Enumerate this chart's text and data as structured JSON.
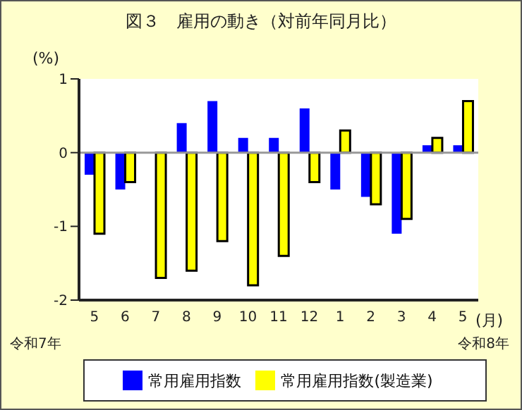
{
  "chart_data": {
    "type": "bar",
    "title": "図３　雇用の動き（対前年同月比）",
    "ylabel": "(%)",
    "xlabel": "(月)",
    "categories": [
      "5",
      "6",
      "7",
      "8",
      "9",
      "10",
      "11",
      "12",
      "1",
      "2",
      "3",
      "4",
      "5"
    ],
    "series": [
      {
        "name": "常用雇用指数",
        "color": "#0000ff",
        "values": [
          -0.3,
          -0.5,
          0,
          0.4,
          0.7,
          0.2,
          0.2,
          0.6,
          -0.5,
          -0.6,
          -1.1,
          0.1,
          0.1
        ]
      },
      {
        "name": "常用雇用指数(製造業)",
        "color": "#ffff00",
        "values": [
          -1.1,
          -0.4,
          -1.7,
          -1.6,
          -1.2,
          -1.8,
          -1.4,
          -0.4,
          0.3,
          -0.7,
          -0.9,
          0.2,
          0.7
        ]
      }
    ],
    "ylim": [
      -2,
      1
    ],
    "yticks": [
      1,
      0,
      -1,
      -2
    ],
    "grid": false,
    "legend": "bottom",
    "ref_lines": [
      {
        "axis": "y",
        "value": 0,
        "color": "#999999"
      }
    ],
    "annotations": [
      "令和7年",
      "令和8年"
    ]
  }
}
